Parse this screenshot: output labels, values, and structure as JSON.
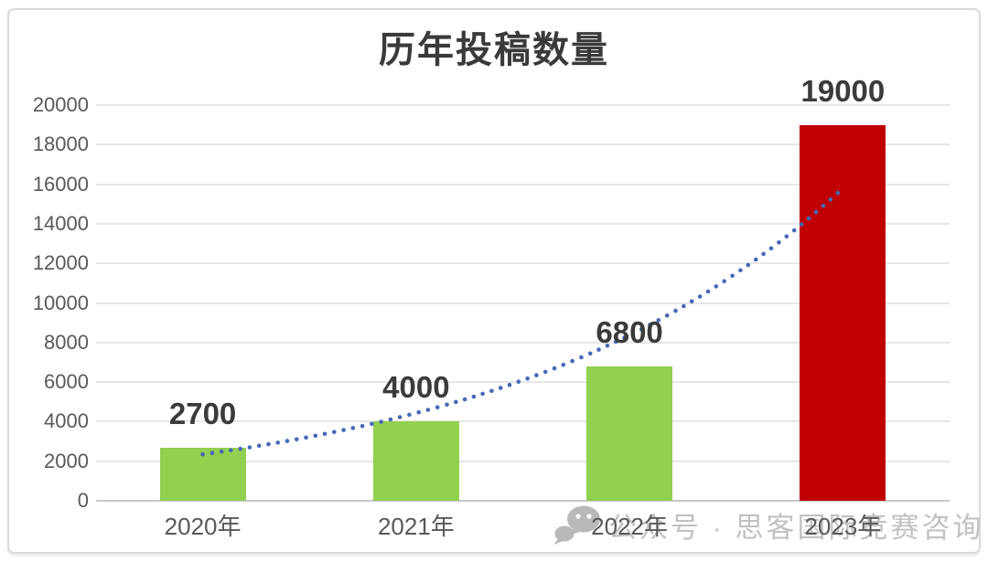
{
  "chart_data": {
    "type": "bar",
    "title": "历年投稿数量",
    "categories": [
      "2020年",
      "2021年",
      "2022年",
      "2023年"
    ],
    "values": [
      2700,
      4000,
      6800,
      19000
    ],
    "data_labels": [
      "2700",
      "4000",
      "6800",
      "19000"
    ],
    "bar_colors": [
      "#92D050",
      "#92D050",
      "#92D050",
      "#C00000"
    ],
    "xlabel": "",
    "ylabel": "",
    "ylim": [
      0,
      20000
    ],
    "ytick_step": 2000,
    "yticks": [
      "0",
      "2000",
      "4000",
      "6000",
      "8000",
      "10000",
      "12000",
      "14000",
      "16000",
      "18000",
      "20000"
    ],
    "grid": true,
    "legend": "none",
    "gridline_color": "#e6e6e6",
    "axis_label_color": "#595959",
    "data_label_color": "#3b3b3b",
    "trendline": {
      "fit": "exponential",
      "style": "dotted",
      "color": "#4569b5",
      "start_value": 2350,
      "end_value": 15800
    }
  },
  "frame": {
    "border_color": "#d9d9d9"
  },
  "watermark": {
    "icon": "wechat-icon",
    "text": "公众号 · 思客国际竞赛咨询",
    "color": "#c2c2c2"
  }
}
